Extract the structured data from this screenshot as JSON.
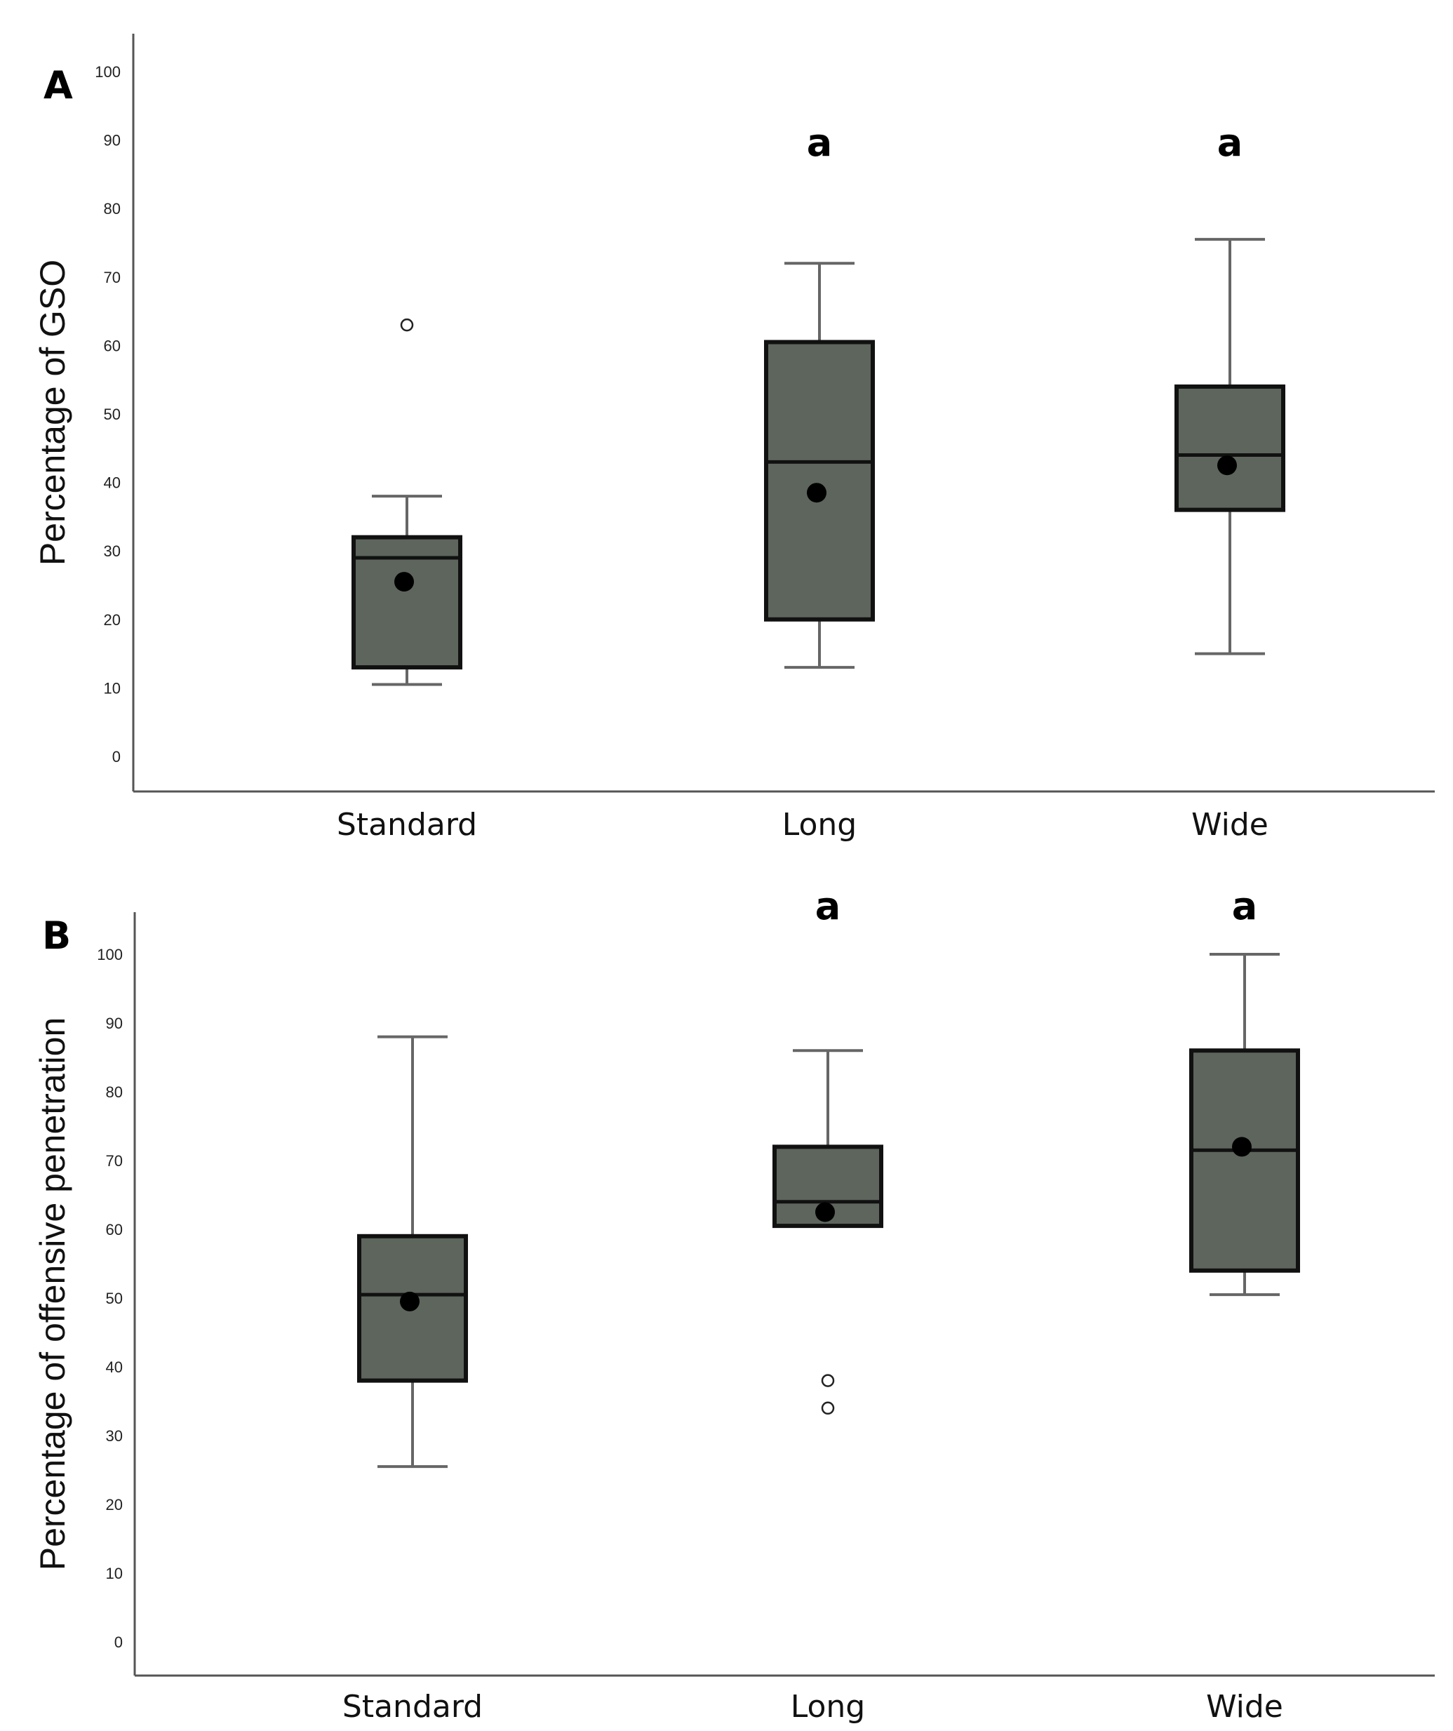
{
  "colors": {
    "box_fill": "#5d655d",
    "box_edge": "#111111",
    "whisker": "#666666"
  },
  "chart_data": [
    {
      "type": "box",
      "panel_label": "A",
      "ylabel": "Percentage of GSO",
      "ylim": [
        -5,
        105
      ],
      "yticks": [
        0,
        10,
        20,
        30,
        40,
        50,
        60,
        70,
        80,
        90,
        100
      ],
      "categories": [
        "Standard",
        "Long",
        "Wide"
      ],
      "boxes": [
        {
          "category": "Standard",
          "min": 10.5,
          "q1": 13,
          "median": 29,
          "q3": 32,
          "max": 38,
          "mean": 25.5,
          "outliers": [
            63
          ],
          "label": ""
        },
        {
          "category": "Long",
          "min": 13,
          "q1": 20,
          "median": 43,
          "q3": 60.5,
          "max": 72,
          "mean": 38.5,
          "outliers": [],
          "label": "a"
        },
        {
          "category": "Wide",
          "min": 15,
          "q1": 36,
          "median": 44,
          "q3": 54,
          "max": 75.5,
          "mean": 42.5,
          "outliers": [],
          "label": "a"
        }
      ]
    },
    {
      "type": "box",
      "panel_label": "B",
      "ylabel": "Percentage of offensive penetration",
      "ylim": [
        -5,
        105.5
      ],
      "yticks": [
        0,
        10,
        20,
        30,
        40,
        50,
        60,
        70,
        80,
        90,
        100
      ],
      "categories": [
        "Standard",
        "Long",
        "Wide"
      ],
      "boxes": [
        {
          "category": "Standard",
          "min": 25.5,
          "q1": 38,
          "median": 50.5,
          "q3": 59,
          "max": 88,
          "mean": 49.5,
          "outliers": [],
          "label": ""
        },
        {
          "category": "Long",
          "min": 60.5,
          "q1": 60.5,
          "median": 64,
          "q3": 72,
          "max": 86,
          "mean": 62.5,
          "outliers": [
            38,
            34
          ],
          "label": "a"
        },
        {
          "category": "Wide",
          "min": 50.5,
          "q1": 54,
          "median": 71.5,
          "q3": 86,
          "max": 100,
          "mean": 72,
          "outliers": [],
          "label": "a"
        }
      ]
    }
  ]
}
